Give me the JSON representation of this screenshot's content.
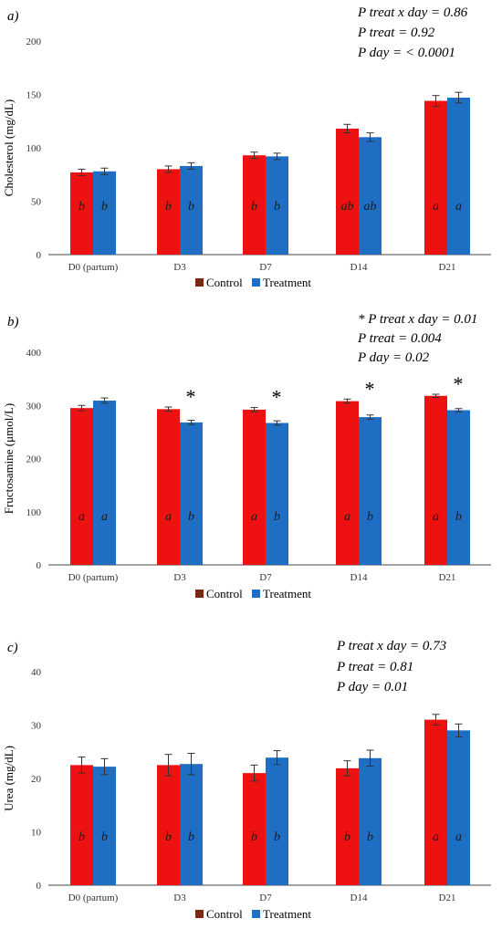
{
  "colors": {
    "control": "#ee1111",
    "treatment": "#1e6fc4",
    "control_legend": "#7a2a10",
    "treatment_legend": "#1e6fc4",
    "axis": "#444444",
    "error": "#333333"
  },
  "legend": {
    "control": "Control",
    "treatment": "Treatment"
  },
  "chart_data": [
    {
      "type": "bar",
      "panel_label": "a)",
      "ylabel": "Cholesterol (mg/dL)",
      "ylim": [
        0,
        200
      ],
      "yticks": [
        0,
        50,
        100,
        150,
        200
      ],
      "categories": [
        "D0 (partum)",
        "D3",
        "D7",
        "D14",
        "D21"
      ],
      "series": [
        {
          "name": "Control",
          "values": [
            77,
            80,
            93,
            118,
            144
          ],
          "errors": [
            3,
            3,
            3,
            4,
            5
          ]
        },
        {
          "name": "Treatment",
          "values": [
            78,
            83,
            92,
            110,
            147
          ],
          "errors": [
            3,
            3,
            3,
            4,
            5
          ]
        }
      ],
      "letters": [
        [
          "b",
          "b"
        ],
        [
          "b",
          "b"
        ],
        [
          "b",
          "b"
        ],
        [
          "ab",
          "ab"
        ],
        [
          "a",
          "a"
        ]
      ],
      "significance": [
        false,
        false,
        false,
        false,
        false
      ],
      "stats": [
        "P treat x day = 0.86",
        "P treat = 0.92",
        "P day = < 0.0001"
      ]
    },
    {
      "type": "bar",
      "panel_label": "b)",
      "ylabel": "Fructosamine (μmol/L)",
      "ylim": [
        0,
        400
      ],
      "yticks": [
        0,
        100,
        200,
        300,
        400
      ],
      "categories": [
        "D0 (partum)",
        "D3",
        "D7",
        "D14",
        "D21"
      ],
      "series": [
        {
          "name": "Control",
          "values": [
            295,
            293,
            292,
            308,
            318
          ],
          "errors": [
            5,
            4,
            4,
            4,
            3
          ]
        },
        {
          "name": "Treatment",
          "values": [
            309,
            268,
            267,
            278,
            291
          ],
          "errors": [
            5,
            4,
            4,
            4,
            3
          ]
        }
      ],
      "letters": [
        [
          "a",
          "a"
        ],
        [
          "a",
          "b"
        ],
        [
          "a",
          "b"
        ],
        [
          "a",
          "b"
        ],
        [
          "a",
          "b"
        ]
      ],
      "significance": [
        false,
        true,
        true,
        true,
        true
      ],
      "significance_mark": "*",
      "stats": [
        "* P treat x day = 0.01",
        "P treat = 0.004",
        "P day = 0.02"
      ]
    },
    {
      "type": "bar",
      "panel_label": "c)",
      "ylabel": "Urea (mg/dL)",
      "ylim": [
        0,
        40
      ],
      "yticks": [
        0,
        10,
        20,
        30,
        40
      ],
      "categories": [
        "D0 (partum)",
        "D3",
        "D7",
        "D14",
        "D21"
      ],
      "series": [
        {
          "name": "Control",
          "values": [
            22.5,
            22.5,
            21.0,
            21.9,
            31.0
          ],
          "errors": [
            1.5,
            2.0,
            1.5,
            1.4,
            1.0
          ]
        },
        {
          "name": "Treatment",
          "values": [
            22.2,
            22.7,
            23.9,
            23.8,
            29.0
          ],
          "errors": [
            1.5,
            2.0,
            1.3,
            1.5,
            1.2
          ]
        }
      ],
      "letters": [
        [
          "b",
          "b"
        ],
        [
          "b",
          "b"
        ],
        [
          "b",
          "b"
        ],
        [
          "b",
          "b"
        ],
        [
          "a",
          "a"
        ]
      ],
      "significance": [
        false,
        false,
        false,
        false,
        false
      ],
      "stats": [
        "P treat x day = 0.73",
        "P treat = 0.81",
        "P day = 0.01"
      ]
    }
  ]
}
